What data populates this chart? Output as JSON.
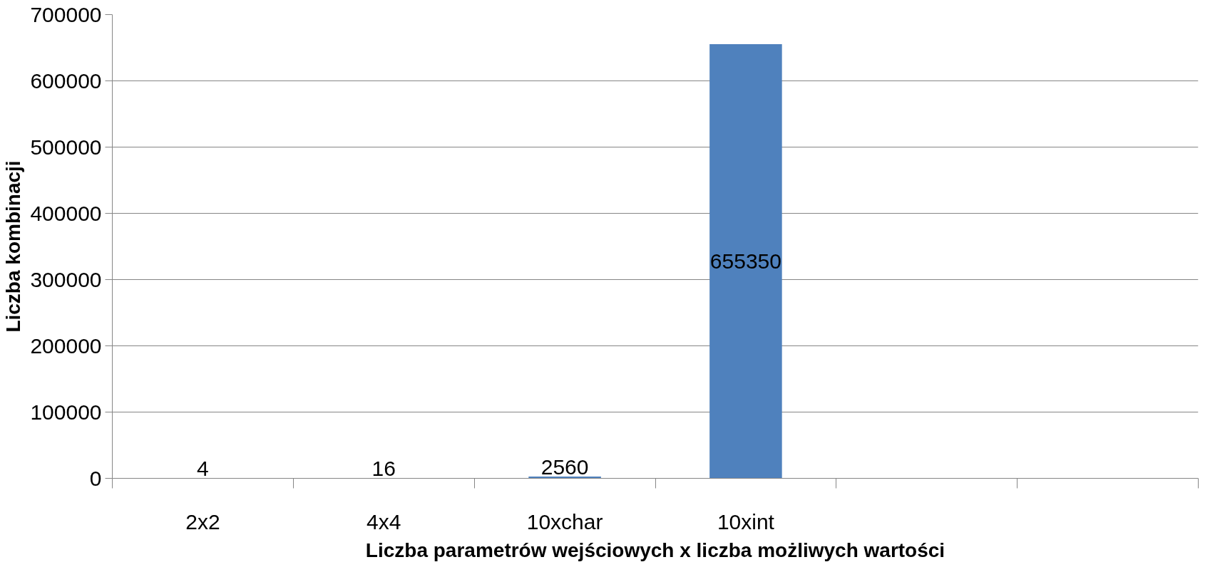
{
  "chart_data": {
    "type": "bar",
    "xlabel": "Liczba parametrów wejściowych x liczba możliwych wartości",
    "ylabel": "Liczba kombinacji",
    "categories": [
      "2x2",
      "4x4",
      "10xchar",
      "10xint",
      null,
      null
    ],
    "values": [
      4,
      16,
      2560,
      655350,
      null,
      null
    ],
    "color": "#4f81bd",
    "ylim": [
      0,
      700000
    ],
    "yticks": [
      0,
      100000,
      200000,
      300000,
      400000,
      500000,
      600000,
      700000
    ],
    "grid": "y",
    "data_labels": true
  }
}
